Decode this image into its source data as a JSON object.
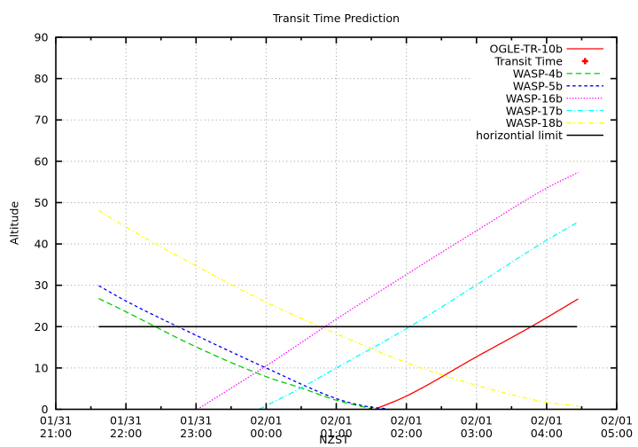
{
  "chart_data": {
    "type": "line",
    "title": "Transit Time Prediction",
    "xlabel": "NZST",
    "ylabel": "Altitude",
    "grid": true,
    "legend_position": "top-right-inside",
    "background": "#ffffff",
    "border_color": "#000000",
    "grid_color": "#9a9a9a",
    "x_axis": {
      "unit": "hours from 01/31 21:00 NZST",
      "range": [
        0,
        8
      ],
      "minor_tick_step": 0.5,
      "ticks": [
        {
          "t": 0,
          "date": "01/31",
          "time": "21:00"
        },
        {
          "t": 1,
          "date": "01/31",
          "time": "22:00"
        },
        {
          "t": 2,
          "date": "01/31",
          "time": "23:00"
        },
        {
          "t": 3,
          "date": "02/01",
          "time": "00:00"
        },
        {
          "t": 4,
          "date": "02/01",
          "time": "01:00"
        },
        {
          "t": 5,
          "date": "02/01",
          "time": "02:00"
        },
        {
          "t": 6,
          "date": "02/01",
          "time": "03:00"
        },
        {
          "t": 7,
          "date": "02/01",
          "time": "04:00"
        },
        {
          "t": 8,
          "date": "02/01",
          "time": "05:00"
        }
      ]
    },
    "y_axis": {
      "min": 0,
      "max": 90,
      "step": 10,
      "ticks": [
        0,
        10,
        20,
        30,
        40,
        50,
        60,
        70,
        80,
        90
      ]
    },
    "series": [
      {
        "name": "OGLE-TR-10b",
        "color": "#ff0000",
        "style": "solid",
        "width": 1.3,
        "points": [
          [
            4.55,
            0
          ],
          [
            5.0,
            3.2
          ],
          [
            6.0,
            12.7
          ],
          [
            6.78,
            20.0
          ],
          [
            7.45,
            26.7
          ]
        ]
      },
      {
        "name": "Transit Time",
        "color": "#ff0000",
        "style": "marker-plus",
        "width": 2.6,
        "points": []
      },
      {
        "name": "WASP-4b",
        "color": "#00cc00",
        "style": "dashed",
        "dash": [
          6.5,
          3.8
        ],
        "width": 1.3,
        "points": [
          [
            0.612,
            26.8
          ],
          [
            1.0,
            23.6
          ],
          [
            2.0,
            15.1
          ],
          [
            3.0,
            7.9
          ],
          [
            3.49,
            5.2
          ],
          [
            4.0,
            2.2
          ],
          [
            4.51,
            0.1
          ]
        ]
      },
      {
        "name": "WASP-5b",
        "color": "#0000ff",
        "style": "dashed",
        "dash": [
          3.6,
          3.0
        ],
        "width": 1.3,
        "points": [
          [
            0.612,
            29.9
          ],
          [
            1.0,
            26.2
          ],
          [
            2.0,
            17.9
          ],
          [
            3.0,
            10.0
          ],
          [
            4.0,
            2.6
          ],
          [
            4.4,
            0.8
          ],
          [
            4.72,
            0.1
          ]
        ]
      },
      {
        "name": "WASP-16b",
        "color": "#ff00ff",
        "style": "dotted",
        "dash": [
          1.4,
          1.8
        ],
        "width": 1.3,
        "points": [
          [
            2.02,
            0
          ],
          [
            3.0,
            10.5
          ],
          [
            4.0,
            21.8
          ],
          [
            5.0,
            32.6
          ],
          [
            6.0,
            43.2
          ],
          [
            7.0,
            53.5
          ],
          [
            7.45,
            57.3
          ]
        ]
      },
      {
        "name": "WASP-17b",
        "color": "#00ffff",
        "style": "dash-dot",
        "dash": [
          6,
          2.6,
          1.2,
          2.6
        ],
        "width": 1.3,
        "points": [
          [
            2.9,
            0
          ],
          [
            3.5,
            5.2
          ],
          [
            4.0,
            10.0
          ],
          [
            5.0,
            19.5
          ],
          [
            6.0,
            30.1
          ],
          [
            7.0,
            40.9
          ],
          [
            7.45,
            45.3
          ]
        ]
      },
      {
        "name": "WASP-18b",
        "color": "#ffff00",
        "style": "dash-dot",
        "dash": [
          5,
          3,
          1.2,
          3
        ],
        "width": 1.3,
        "points": [
          [
            0.612,
            48.1
          ],
          [
            1.0,
            44.1
          ],
          [
            2.0,
            34.7
          ],
          [
            3.0,
            25.9
          ],
          [
            4.0,
            18.3
          ],
          [
            5.0,
            11.3
          ],
          [
            6.0,
            5.8
          ],
          [
            7.0,
            1.7
          ],
          [
            7.45,
            0.8
          ]
        ]
      },
      {
        "name": "horizontial limit",
        "color": "#000000",
        "style": "solid",
        "width": 1.6,
        "points": [
          [
            0.612,
            20
          ],
          [
            7.44,
            20
          ]
        ]
      }
    ]
  }
}
